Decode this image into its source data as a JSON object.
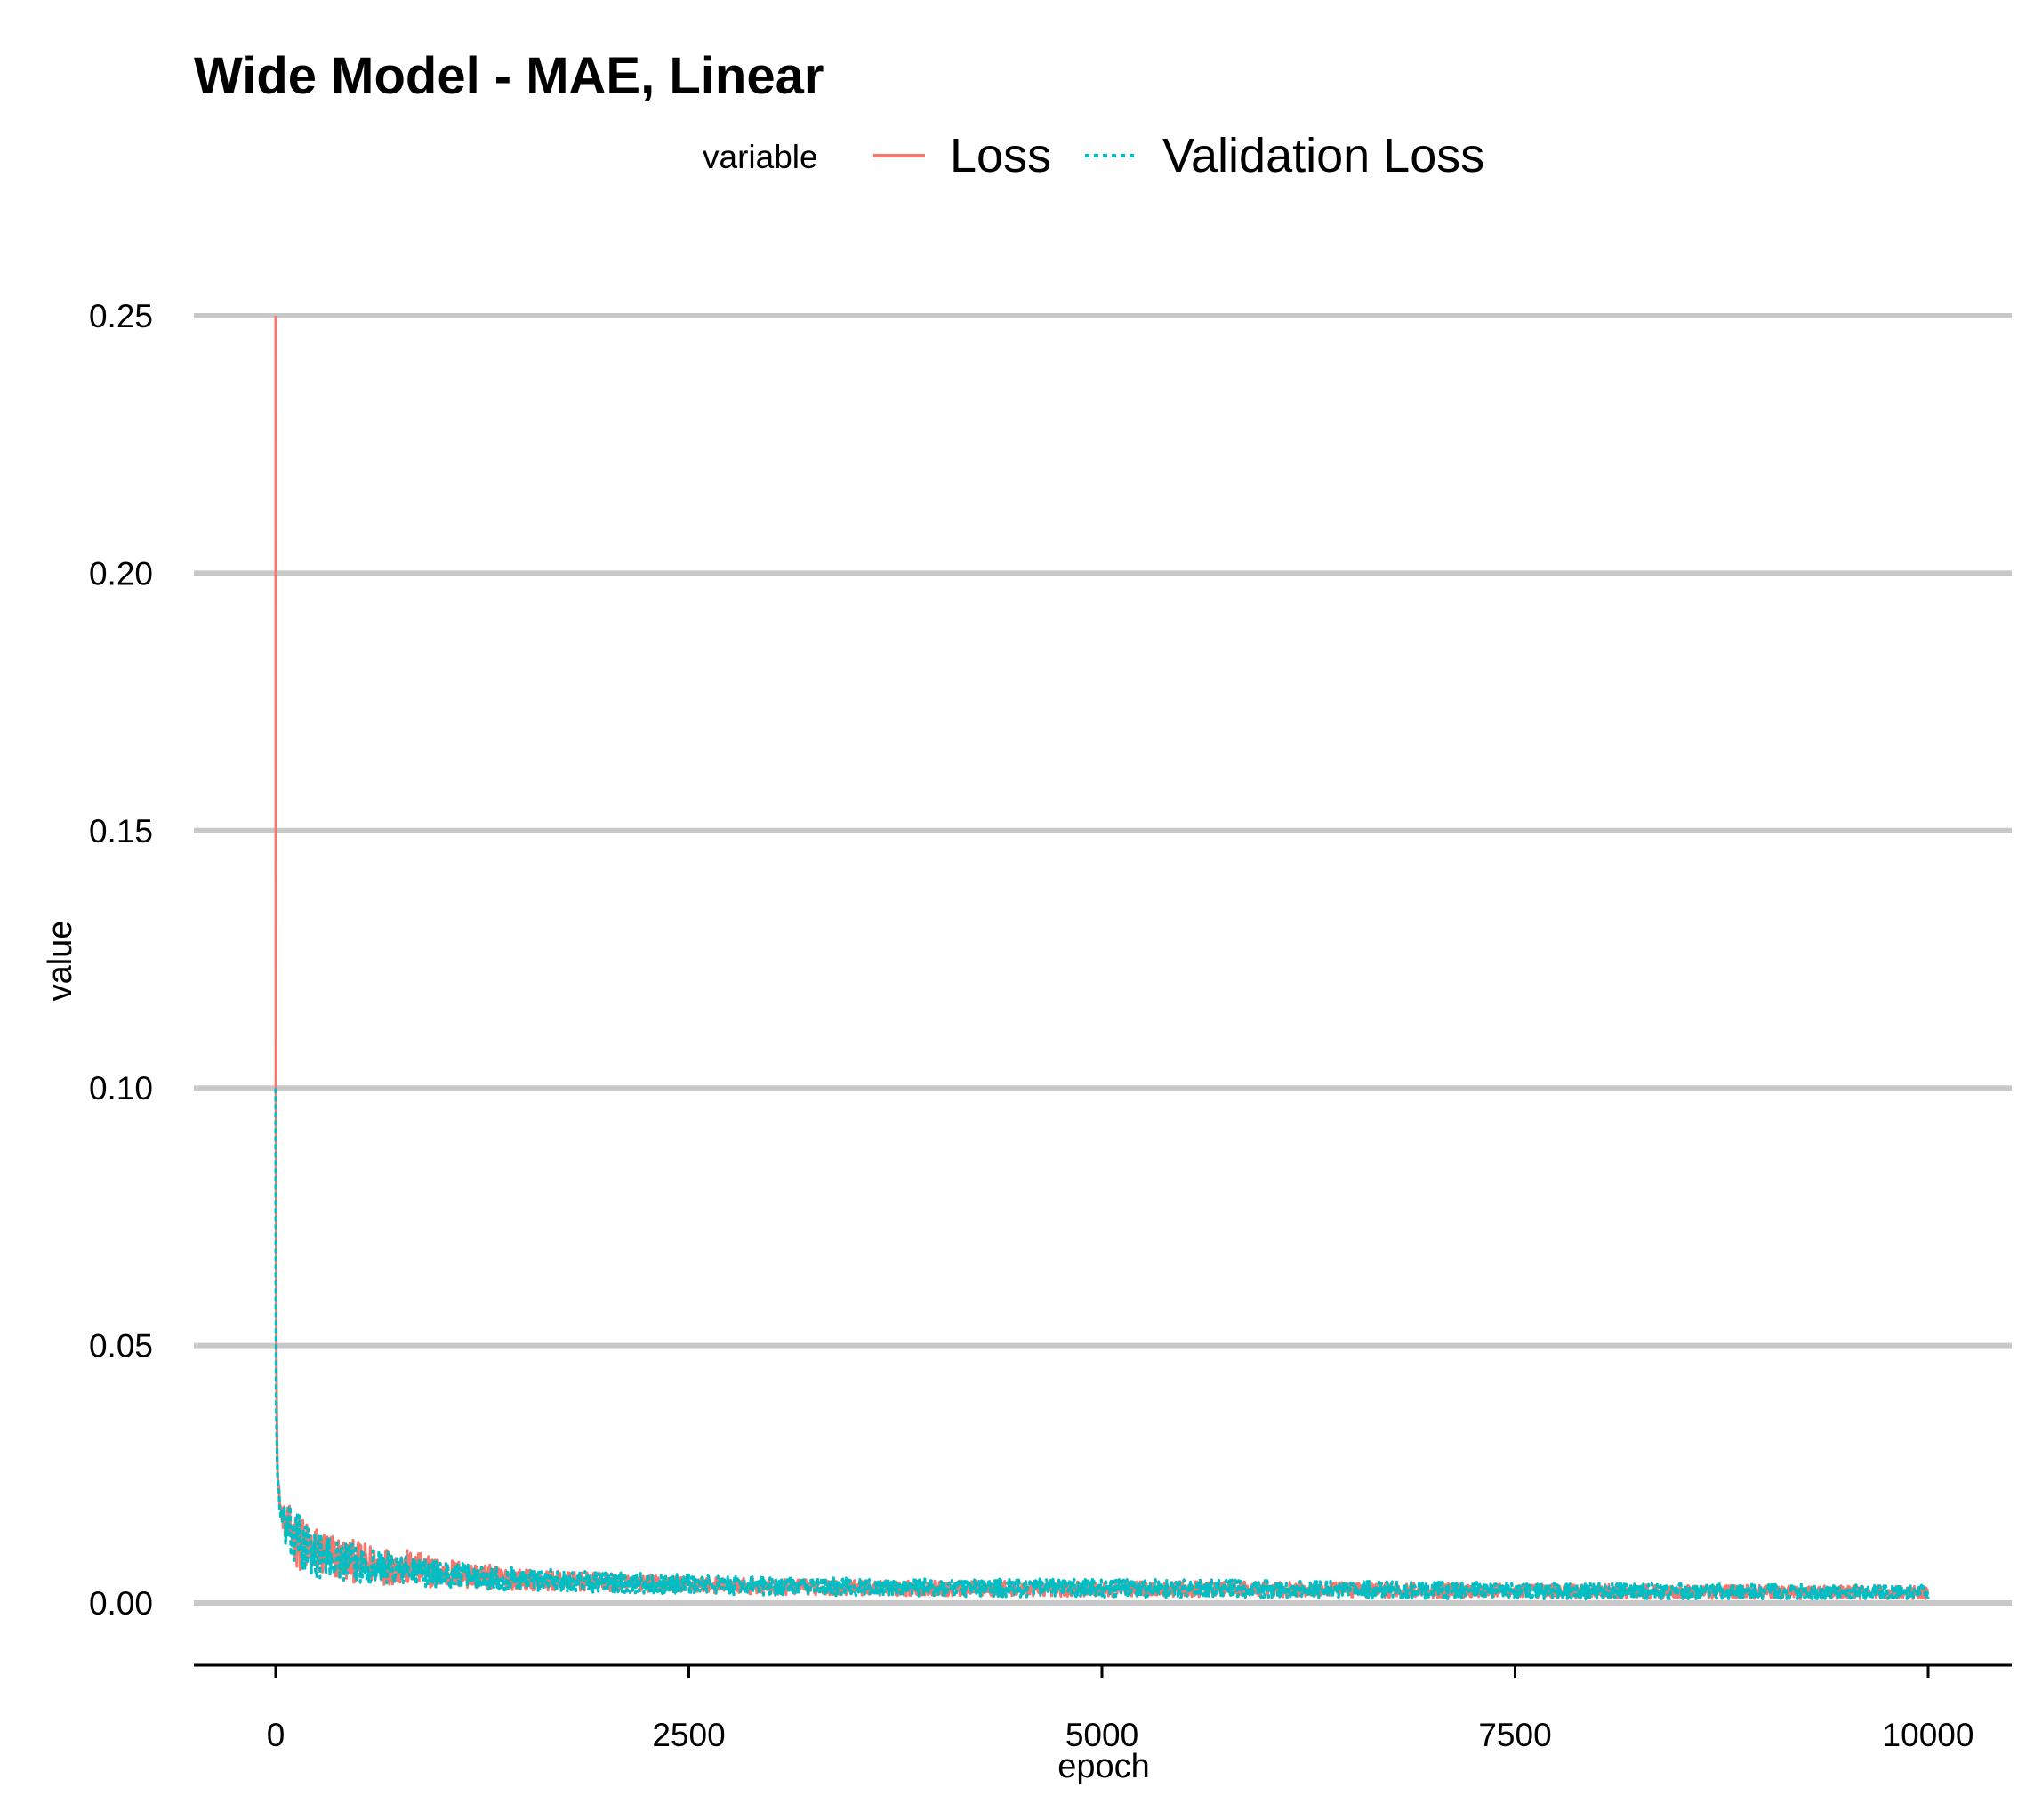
{
  "chart_data": {
    "type": "line",
    "title": "Wide Model - MAE, Linear",
    "xlabel": "epoch",
    "ylabel": "value",
    "xlim": [
      -500,
      10500
    ],
    "ylim": [
      -0.012,
      0.25
    ],
    "x_ticks": [
      0,
      2500,
      5000,
      7500,
      10000
    ],
    "x_tick_labels": [
      "0",
      "2500",
      "5000",
      "7500",
      "10000"
    ],
    "y_ticks": [
      0.0,
      0.05,
      0.1,
      0.15,
      0.2,
      0.25
    ],
    "y_tick_labels": [
      "0.00",
      "0.05",
      "0.10",
      "0.15",
      "0.20",
      "0.25"
    ],
    "grid": "horizontal major lines",
    "legend": {
      "title": "variable",
      "position": "top",
      "entries": [
        "Loss",
        "Validation Loss"
      ]
    },
    "colors": {
      "Loss": "#F8766D",
      "Validation Loss": "#00BFC4"
    },
    "series": [
      {
        "name": "Loss",
        "line_style": "solid",
        "x": [
          0,
          1,
          3,
          10,
          30,
          60,
          100,
          150,
          200,
          300,
          400,
          500,
          600,
          700,
          800,
          900,
          1000,
          1200,
          1400,
          1600,
          1800,
          2000,
          2500,
          3000,
          3500,
          4000,
          5000,
          6000,
          7000,
          8000,
          9000,
          10000
        ],
        "values": [
          0.25,
          0.1,
          0.05,
          0.025,
          0.018,
          0.015,
          0.013,
          0.011,
          0.01,
          0.009,
          0.008,
          0.0075,
          0.007,
          0.0068,
          0.0065,
          0.006,
          0.0055,
          0.005,
          0.0045,
          0.0042,
          0.004,
          0.0038,
          0.0034,
          0.003,
          0.0028,
          0.0027,
          0.0026,
          0.0025,
          0.0023,
          0.0021,
          0.002,
          0.0019
        ],
        "noise_band": [
          [
            0,
            0.0
          ],
          [
            100,
            0.011
          ],
          [
            500,
            0.008
          ],
          [
            1000,
            0.006
          ],
          [
            1500,
            0.004
          ],
          [
            2500,
            0.003
          ],
          [
            5000,
            0.003
          ],
          [
            10000,
            0.0026
          ]
        ]
      },
      {
        "name": "Validation Loss",
        "line_style": "dotted",
        "x": [
          0,
          1,
          3,
          10,
          30,
          60,
          100,
          150,
          200,
          300,
          400,
          500,
          600,
          700,
          800,
          900,
          1000,
          1200,
          1400,
          1600,
          1800,
          2000,
          2500,
          3000,
          3500,
          4000,
          5000,
          6000,
          7000,
          8000,
          9000,
          10000
        ],
        "values": [
          0.1,
          0.06,
          0.04,
          0.025,
          0.017,
          0.014,
          0.012,
          0.011,
          0.0095,
          0.0085,
          0.0078,
          0.0072,
          0.0068,
          0.0064,
          0.006,
          0.0056,
          0.0053,
          0.0049,
          0.0045,
          0.0042,
          0.004,
          0.0038,
          0.0034,
          0.0031,
          0.0029,
          0.0028,
          0.0027,
          0.0025,
          0.0023,
          0.0021,
          0.002,
          0.0019
        ],
        "noise_band": [
          [
            0,
            0.0
          ],
          [
            100,
            0.013
          ],
          [
            300,
            0.008
          ],
          [
            1000,
            0.005
          ],
          [
            2000,
            0.004
          ],
          [
            3000,
            0.0035
          ],
          [
            6000,
            0.0035
          ],
          [
            10000,
            0.0028
          ]
        ]
      }
    ]
  }
}
